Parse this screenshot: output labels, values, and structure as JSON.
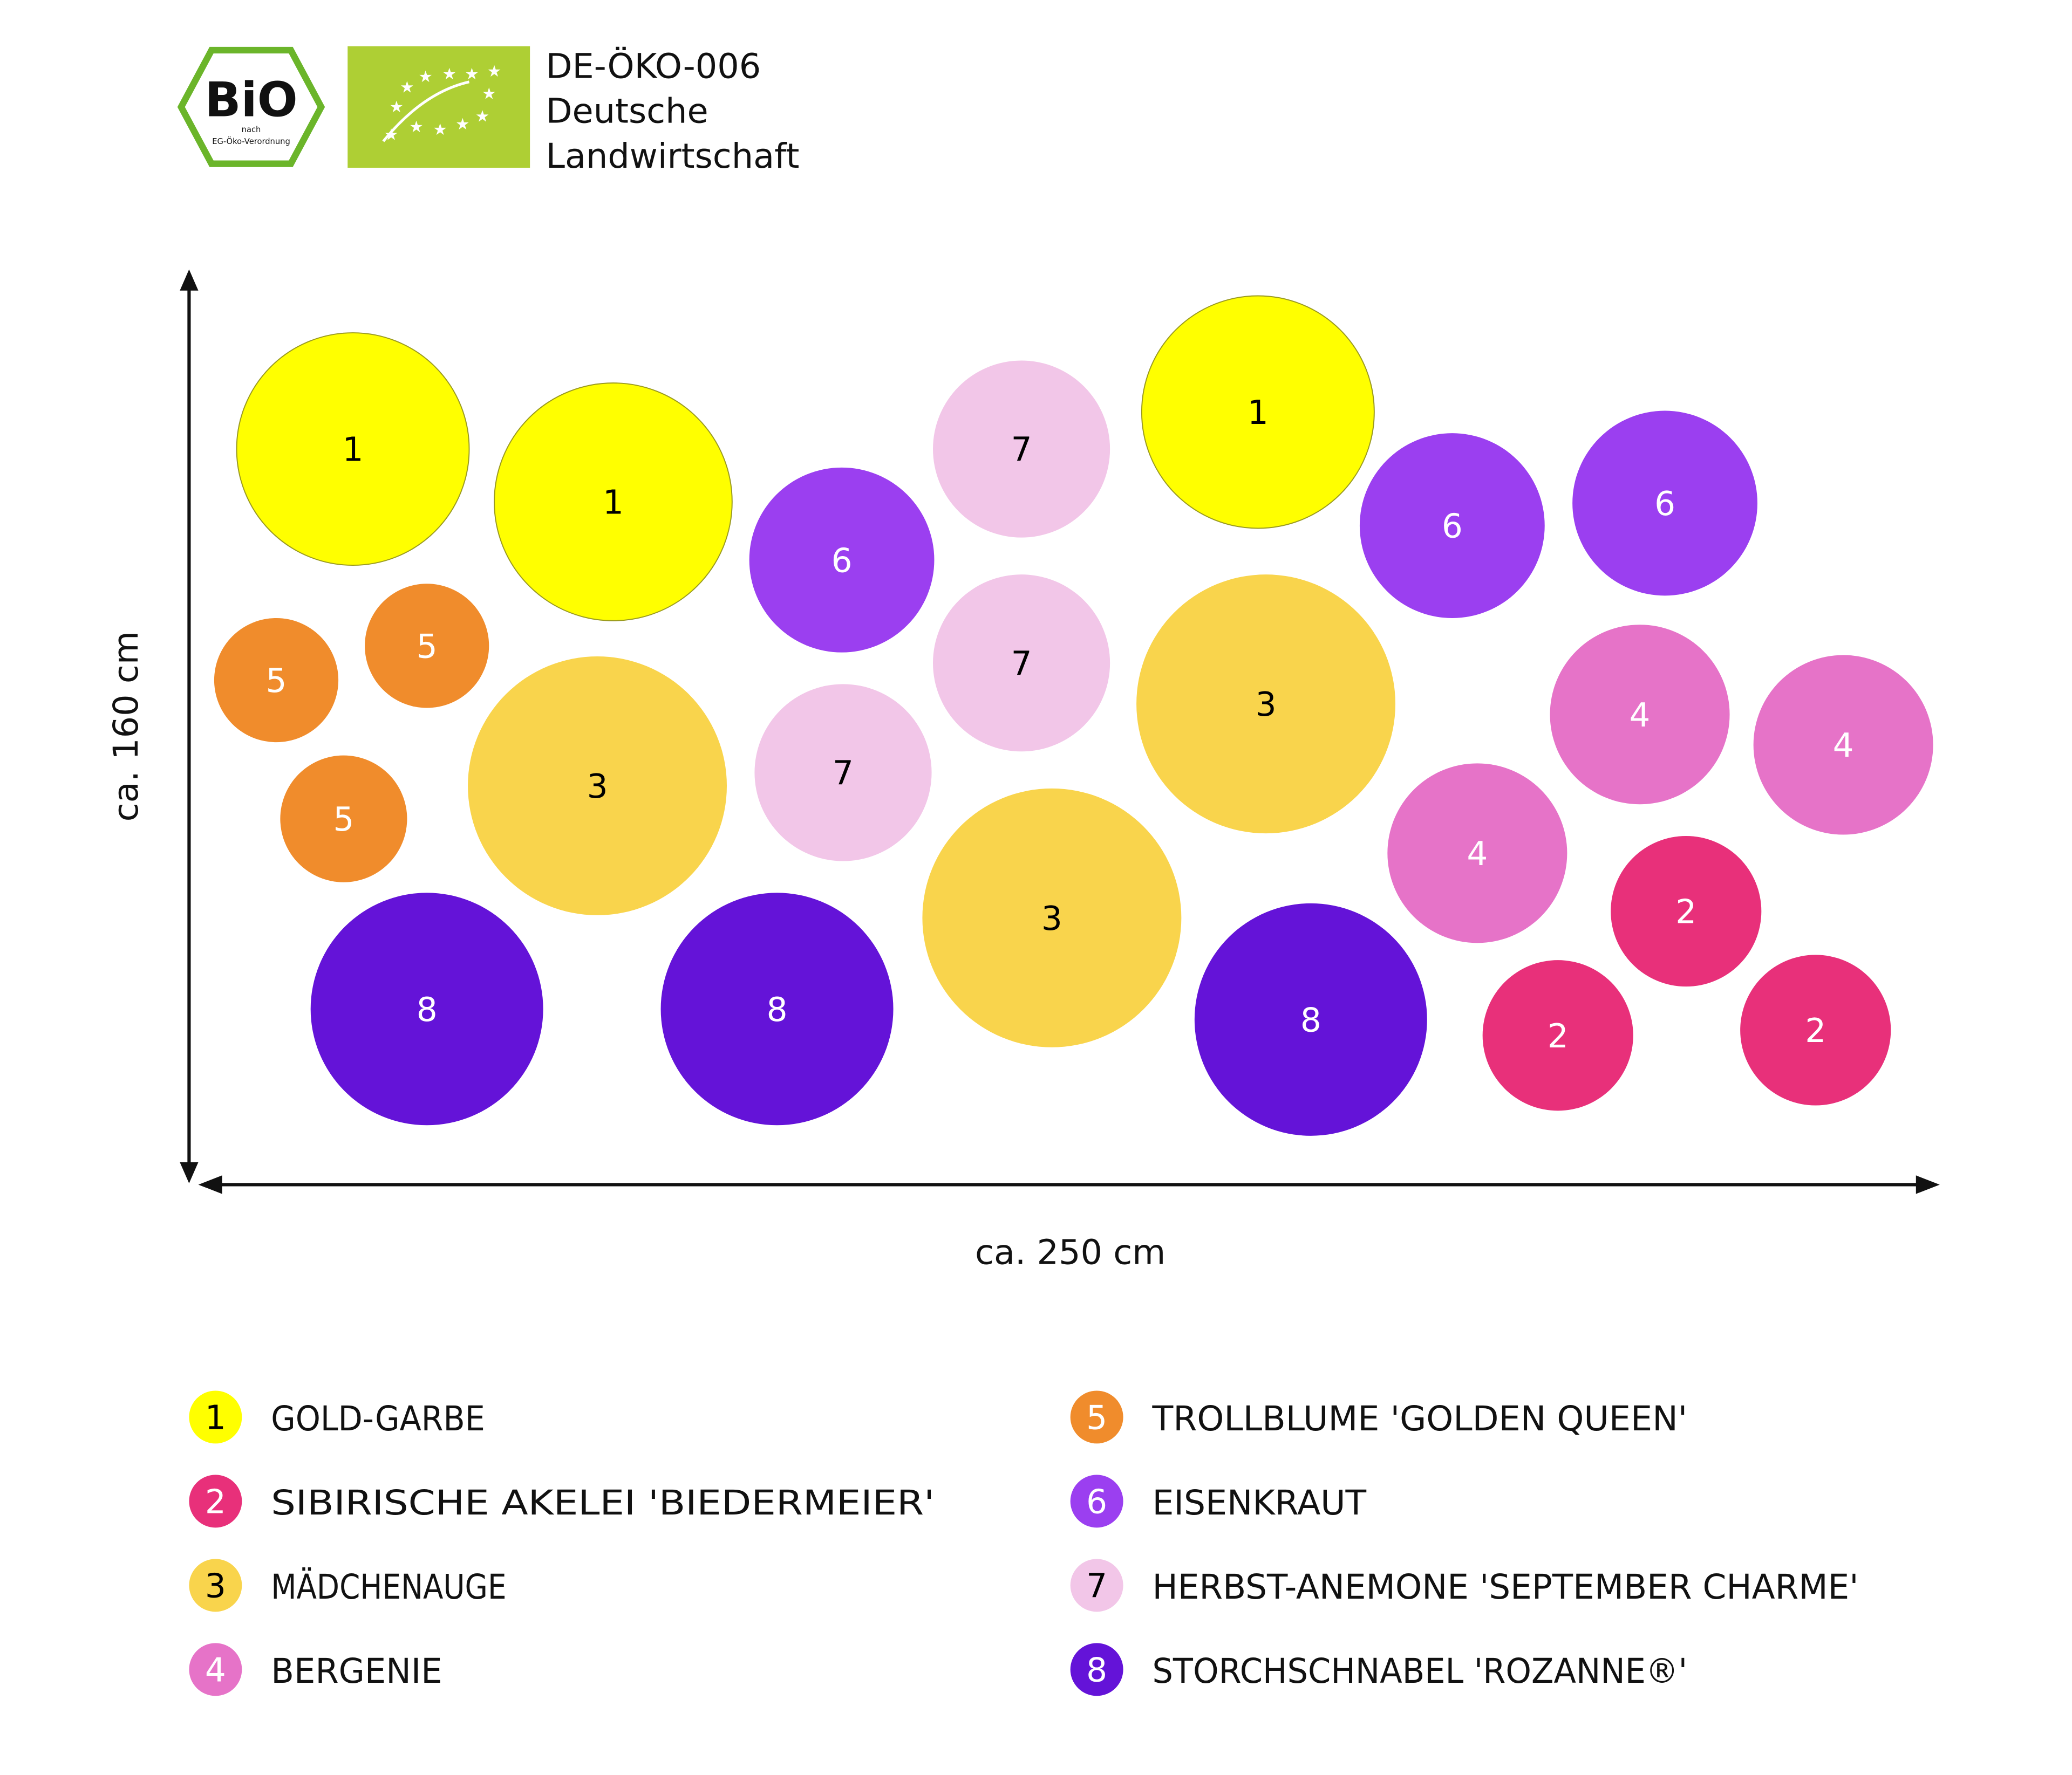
{
  "header": {
    "bio_logo": {
      "main": "BiO",
      "sub1": "nach",
      "sub2": "EG-Öko-Verordnung"
    },
    "eu_logo": "eu-organic-leaf-icon",
    "cert_lines": [
      "DE-ÖKO-006",
      "Deutsche",
      "Landwirtschaft"
    ]
  },
  "axes": {
    "vertical_label": "ca. 160 cm",
    "horizontal_label": "ca. 250 cm"
  },
  "plants": [
    {
      "number": "1",
      "name": "GOLD-GARBE",
      "color": "#ffff00",
      "text_color": "#000000"
    },
    {
      "number": "2",
      "name": "SIBIRISCHE AKELEI 'BIEDERMEIER'",
      "color": "#e8307a",
      "text_color": "#ffffff"
    },
    {
      "number": "3",
      "name": "MÄDCHENAUGE",
      "color": "#f9d44c",
      "text_color": "#000000"
    },
    {
      "number": "4",
      "name": "BERGENIE",
      "color": "#e673c8",
      "text_color": "#ffffff"
    },
    {
      "number": "5",
      "name": "TROLLBLUME 'GOLDEN QUEEN'",
      "color": "#f08c2c",
      "text_color": "#ffffff"
    },
    {
      "number": "6",
      "name": "EISENKRAUT",
      "color": "#9b3ff0",
      "text_color": "#ffffff"
    },
    {
      "number": "7",
      "name": "HERBST-ANEMONE 'SEPTEMBER CHARME'",
      "color": "#f2c6e8",
      "text_color": "#000000"
    },
    {
      "number": "8",
      "name": "STORCHSCHNABEL 'ROZANNE®'",
      "color": "#6413d8",
      "text_color": "#ffffff"
    }
  ],
  "bed_plants": [
    "1",
    "1",
    "1",
    "7",
    "7",
    "7",
    "6",
    "6",
    "6",
    "5",
    "5",
    "5",
    "3",
    "3",
    "3",
    "4",
    "4",
    "4",
    "2",
    "2",
    "2",
    "8",
    "8",
    "8"
  ]
}
